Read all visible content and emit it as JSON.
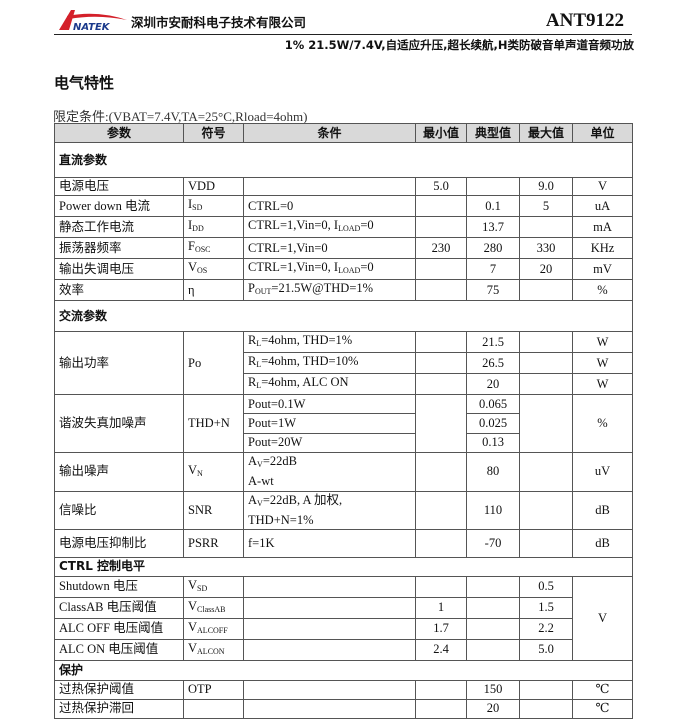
{
  "header": {
    "logo_text": "NATEK",
    "company": "深圳市安耐科电子技术有限公司",
    "model": "ANT9122",
    "subtitle": "1% 21.5W/7.4V,自适应升压,超长续航,H类防破音单声道音频功放"
  },
  "section_title": "电气特性",
  "conditions": "限定条件:(VBAT=7.4V,TA=25°C,Rload=4ohm)",
  "colors": {
    "header_bg": "#d9d9d9",
    "logo_red": "#d4202a",
    "logo_blue": "#1b3a8c"
  },
  "table": {
    "columns": [
      "参数",
      "符号",
      "条件",
      "最小值",
      "典型值",
      "最大值",
      "单位"
    ],
    "rows": [
      {
        "section": "直流参数"
      },
      {
        "cells": [
          [
            "电源电压"
          ],
          [
            "VDD"
          ],
          [
            ""
          ],
          [
            "5.0"
          ],
          [
            ""
          ],
          [
            "9.0"
          ],
          [
            "V"
          ]
        ]
      },
      {
        "cells": [
          [
            "Power down  电流"
          ],
          [
            "I",
            "SD"
          ],
          [
            "CTRL=0"
          ],
          [
            ""
          ],
          [
            "0.1"
          ],
          [
            "5"
          ],
          [
            "uA"
          ]
        ]
      },
      {
        "cells": [
          [
            "静态工作电流"
          ],
          [
            "I",
            "DD"
          ],
          [
            "CTRL=1,Vin=0, I",
            "LOAD",
            "=0"
          ],
          [
            ""
          ],
          [
            "13.7"
          ],
          [
            ""
          ],
          [
            "mA"
          ]
        ]
      },
      {
        "cells": [
          [
            "振荡器频率"
          ],
          [
            "F",
            "OSC"
          ],
          [
            "CTRL=1,Vin=0"
          ],
          [
            "230"
          ],
          [
            "280"
          ],
          [
            "330"
          ],
          [
            "KHz"
          ]
        ]
      },
      {
        "cells": [
          [
            "输出失调电压"
          ],
          [
            "V",
            "OS"
          ],
          [
            "CTRL=1,Vin=0, I",
            "LOAD",
            "=0"
          ],
          [
            ""
          ],
          [
            "7"
          ],
          [
            "20"
          ],
          [
            "mV"
          ]
        ]
      },
      {
        "cells": [
          [
            "效率"
          ],
          [
            "η"
          ],
          [
            "P",
            "OUT",
            "=21.5W@THD=1%"
          ],
          [
            ""
          ],
          [
            "75"
          ],
          [
            ""
          ],
          [
            "%"
          ]
        ]
      },
      {
        "section": "交流参数"
      },
      {
        "cells": [
          {
            "t": [
              "输出功率"
            ],
            "span": 3
          },
          {
            "t": [
              "Po"
            ],
            "span": 3
          },
          [
            "R",
            "L",
            "=4ohm,  THD=1%"
          ],
          [
            ""
          ],
          [
            "21.5"
          ],
          [
            ""
          ],
          [
            "W"
          ]
        ]
      },
      {
        "cells": [
          null,
          null,
          [
            "R",
            "L",
            "=4ohm,  THD=10%"
          ],
          [
            ""
          ],
          [
            "26.5"
          ],
          [
            ""
          ],
          [
            "W"
          ]
        ]
      },
      {
        "cells": [
          null,
          null,
          [
            "R",
            "L",
            "=4ohm,  ALC ON"
          ],
          [
            ""
          ],
          [
            "20"
          ],
          [
            ""
          ],
          [
            "W"
          ]
        ]
      },
      {
        "cells": [
          {
            "t": [
              "谐波失真加噪声"
            ],
            "span": 3
          },
          {
            "t": [
              "THD+N"
            ],
            "span": 3
          },
          [
            "Pout=0.1W"
          ],
          {
            "t": [
              ""
            ],
            "span": 3
          },
          [
            "0.065"
          ],
          {
            "t": [
              ""
            ],
            "span": 3
          },
          {
            "t": [
              "%"
            ],
            "span": 3
          }
        ]
      },
      {
        "cells": [
          null,
          null,
          [
            "Pout=1W"
          ],
          null,
          [
            "0.025"
          ],
          null,
          null
        ]
      },
      {
        "cells": [
          null,
          null,
          [
            "Pout=20W"
          ],
          null,
          [
            "0.13"
          ],
          null,
          null
        ]
      },
      {
        "cells": [
          [
            "输出噪声"
          ],
          [
            "V",
            "N"
          ],
          {
            "lines": [
              [
                "A",
                "V",
                "=22dB"
              ],
              [
                "A-wt"
              ]
            ]
          },
          [
            ""
          ],
          [
            "80"
          ],
          [
            ""
          ],
          [
            "uV"
          ]
        ]
      },
      {
        "cells": [
          [
            "信噪比"
          ],
          [
            "SNR"
          ],
          {
            "lines": [
              [
                "A",
                "V",
                "=22dB,  A 加权,"
              ],
              [
                "THD+N=1%"
              ]
            ]
          },
          [
            ""
          ],
          [
            "110"
          ],
          [
            ""
          ],
          [
            "dB"
          ]
        ]
      },
      {
        "cells": [
          [
            "电源电压抑制比"
          ],
          [
            "PSRR"
          ],
          [
            "f=1K"
          ],
          [
            ""
          ],
          [
            "-70"
          ],
          [
            ""
          ],
          [
            "dB"
          ]
        ]
      },
      {
        "section": "CTRL 控制电平"
      },
      {
        "cells": [
          [
            "Shutdown 电压"
          ],
          [
            "V",
            "SD"
          ],
          [
            ""
          ],
          [
            ""
          ],
          [
            ""
          ],
          [
            "0.5"
          ],
          {
            "t": [
              "V"
            ],
            "span": 4
          }
        ]
      },
      {
        "cells": [
          [
            "ClassAB 电压阈值"
          ],
          [
            "V",
            "ClassAB"
          ],
          [
            ""
          ],
          [
            "1"
          ],
          [
            ""
          ],
          [
            "1.5"
          ],
          null
        ]
      },
      {
        "cells": [
          [
            "ALC OFF 电压阈值"
          ],
          [
            "V",
            "ALCOFF"
          ],
          [
            ""
          ],
          [
            "1.7"
          ],
          [
            ""
          ],
          [
            "2.2"
          ],
          null
        ]
      },
      {
        "cells": [
          [
            "ALC ON  电压阈值"
          ],
          [
            "V",
            "ALCON"
          ],
          [
            ""
          ],
          [
            "2.4"
          ],
          [
            ""
          ],
          [
            "5.0"
          ],
          null
        ]
      },
      {
        "section": "保护"
      },
      {
        "cells": [
          [
            "过热保护阈值"
          ],
          [
            "OTP"
          ],
          [
            ""
          ],
          [
            ""
          ],
          [
            "150"
          ],
          [
            ""
          ],
          [
            "℃"
          ]
        ]
      },
      {
        "cells": [
          [
            "过热保护滞回"
          ],
          [
            ""
          ],
          [
            ""
          ],
          [
            ""
          ],
          [
            "20"
          ],
          [
            ""
          ],
          [
            "℃"
          ]
        ]
      }
    ]
  }
}
